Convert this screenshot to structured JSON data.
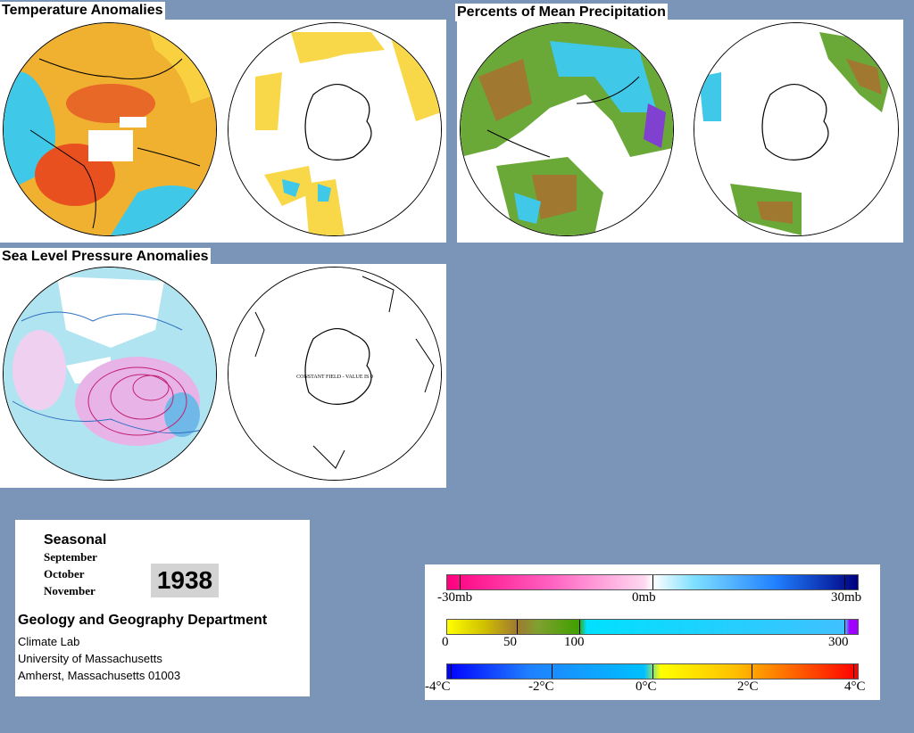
{
  "panels": {
    "temperature": {
      "title": "Temperature Anomalies"
    },
    "precipitation": {
      "title": "Percents of Mean Precipitation"
    },
    "pressure": {
      "title": "Sea Level Pressure Anomalies",
      "south_note": "CONSTANT FIELD - VALUE IS 0"
    }
  },
  "info": {
    "season": "Seasonal",
    "months": [
      "September",
      "October",
      "November"
    ],
    "year": "1938",
    "department": "Geology and Geography Department",
    "address": [
      "Climate Lab",
      "University of Massachusetts",
      "Amherst, Massachusetts 01003"
    ]
  },
  "legend": {
    "pressure": {
      "labels": [
        "-30mb",
        "0mb",
        "30mb"
      ]
    },
    "precip": {
      "labels": [
        "0",
        "50",
        "100",
        "300"
      ]
    },
    "temp": {
      "labels": [
        "-4°C",
        "-2°C",
        "0°C",
        "2°C",
        "4°C"
      ]
    }
  },
  "colors": {
    "background": "#7a95b8",
    "warm": "#f0a020",
    "cool": "#40c8e8",
    "precip_green": "#60a030",
    "precip_brown": "#a07830",
    "pressure_pink": "#e8a0e8",
    "pressure_blue": "#a8e0f0"
  }
}
